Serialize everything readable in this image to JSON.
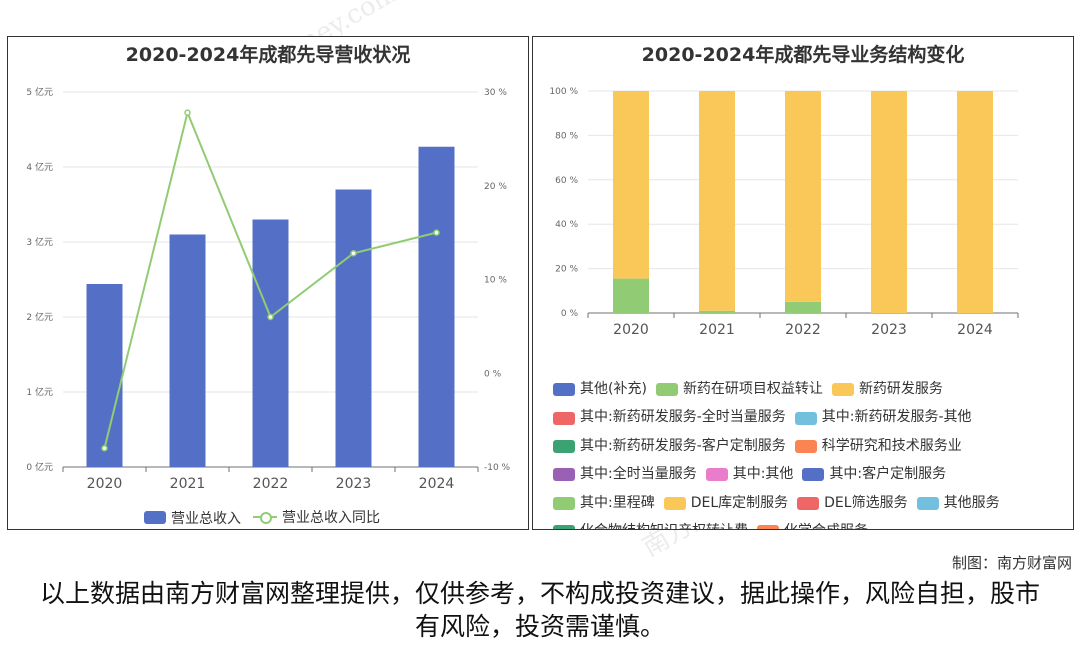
{
  "left_title": "2020-2024年成都先导营收状况",
  "right_title": "2020-2024年成都先导业务结构变化",
  "watermark": "南方财富网 southmoney.com",
  "credit": "制图：南方财富网",
  "disclaimer": "以上数据由南方财富网整理提供，仅供参考，不构成投资建议，据此操作，风险自担，股市有风险，投资需谨慎。",
  "colors": {
    "bar_blue": "#5470c6",
    "line_green": "#91cc75",
    "stack_yellow": "#fac858"
  },
  "chart_data": [
    {
      "type": "bar",
      "title": "2020-2024年成都先导营收状况",
      "categories": [
        "2020",
        "2021",
        "2022",
        "2023",
        "2024"
      ],
      "y_axis_left": {
        "ticks": [
          "0 亿元",
          "1 亿元",
          "2 亿元",
          "3 亿元",
          "4 亿元",
          "5 亿元"
        ],
        "ylim": [
          0,
          5
        ],
        "unit": "亿元"
      },
      "y_axis_right": {
        "ticks": [
          "-10 %",
          "0 %",
          "10 %",
          "20 %",
          "30 %"
        ],
        "ylim": [
          -10,
          30
        ],
        "unit": "%"
      },
      "series": [
        {
          "name": "营业总收入",
          "type": "bar",
          "axis": "left",
          "values": [
            2.44,
            3.1,
            3.3,
            3.7,
            4.27
          ]
        },
        {
          "name": "营业总收入同比",
          "type": "line",
          "axis": "right",
          "values": [
            -8.0,
            27.8,
            6.0,
            12.8,
            15.0
          ]
        }
      ],
      "legend": [
        "营业总收入",
        "营业总收入同比"
      ],
      "grid": true
    },
    {
      "type": "bar",
      "stacked": true,
      "title": "2020-2024年成都先导业务结构变化",
      "categories": [
        "2020",
        "2021",
        "2022",
        "2023",
        "2024"
      ],
      "y_axis": {
        "ticks": [
          "0 %",
          "20 %",
          "40 %",
          "60 %",
          "80 %",
          "100 %"
        ],
        "ylim": [
          0,
          100
        ],
        "unit": "%"
      },
      "series": [
        {
          "name": "新药在研项目权益转让",
          "values": [
            15.5,
            1.0,
            5.0,
            0,
            0
          ]
        },
        {
          "name": "新药研发服务",
          "values": [
            84.5,
            99.0,
            95.0,
            100,
            100
          ]
        }
      ],
      "legend": [
        {
          "name": "其他(补充)",
          "color": "#5470c6"
        },
        {
          "name": "新药在研项目权益转让",
          "color": "#91cc75"
        },
        {
          "name": "新药研发服务",
          "color": "#fac858"
        },
        {
          "name": "其中:新药研发服务-全时当量服务",
          "color": "#ee6666"
        },
        {
          "name": "其中:新药研发服务-其他",
          "color": "#73c0de"
        },
        {
          "name": "其中:新药研发服务-客户定制服务",
          "color": "#3ba272"
        },
        {
          "name": "科学研究和技术服务业",
          "color": "#fc8452"
        },
        {
          "name": "其中:全时当量服务",
          "color": "#9a60b4"
        },
        {
          "name": "其中:其他",
          "color": "#ea7ccc"
        },
        {
          "name": "其中:客户定制服务",
          "color": "#5470c6"
        },
        {
          "name": "其中:里程碑",
          "color": "#91cc75"
        },
        {
          "name": "DEL库定制服务",
          "color": "#fac858"
        },
        {
          "name": "DEL筛选服务",
          "color": "#ee6666"
        },
        {
          "name": "其他服务",
          "color": "#73c0de"
        },
        {
          "name": "化合物结构知识产权转让费",
          "color": "#3ba272"
        },
        {
          "name": "化学合成服务",
          "color": "#fc8452"
        }
      ],
      "grid": true
    }
  ]
}
